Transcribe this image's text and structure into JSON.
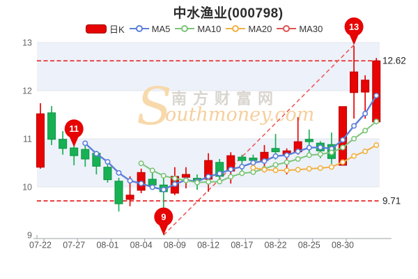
{
  "title": "中水渔业(000798)",
  "legend": {
    "items": [
      {
        "label": "日K",
        "type": "rect",
        "color": "#e60404"
      },
      {
        "label": "MA5",
        "type": "line",
        "color": "#5c7fd8"
      },
      {
        "label": "MA10",
        "type": "line",
        "color": "#7cc477"
      },
      {
        "label": "MA20",
        "type": "line",
        "color": "#f0b143"
      },
      {
        "label": "MA30",
        "type": "line",
        "color": "#e05252"
      }
    ]
  },
  "watermark": {
    "en_initial": "S",
    "cn": "南方财富网",
    "en_rest": "outhmoney.com"
  },
  "chart_data": {
    "type": "candlestick",
    "title": "中水渔业(000798)",
    "y_axis": {
      "ticks": [
        "13",
        "12",
        "11",
        "10",
        "9"
      ],
      "min": 9,
      "max": 13,
      "grid": true
    },
    "x_axis": {
      "labels": [
        "07-22",
        "07-27",
        "08-01",
        "08-04",
        "08-09",
        "08-12",
        "08-17",
        "08-22",
        "08-25",
        "08-30"
      ],
      "label_indices": [
        0,
        3,
        6,
        9,
        12,
        15,
        18,
        21,
        24,
        27
      ]
    },
    "colors": {
      "up": "#e60404",
      "up_stroke": "#bf0000",
      "down": "#17b154",
      "down_stroke": "#0b9342",
      "band": "#edf1f9",
      "grid": "#e3e6ec",
      "axis": "#9aa0a6",
      "ref_line": "#e60000",
      "trend_line": "#ee5a5a",
      "pin": "#e60404"
    },
    "candles": [
      {
        "d": "07-22",
        "o": 10.41,
        "c": 11.52,
        "h": 11.74,
        "l": 10.38
      },
      {
        "d": "07-25",
        "o": 11.54,
        "c": 10.99,
        "h": 11.68,
        "l": 10.87
      },
      {
        "d": "07-26",
        "o": 10.99,
        "c": 10.8,
        "h": 11.16,
        "l": 10.67
      },
      {
        "d": "07-27",
        "o": 10.81,
        "c": 10.65,
        "h": 10.88,
        "l": 10.45
      },
      {
        "d": "07-28",
        "o": 10.78,
        "c": 10.58,
        "h": 10.88,
        "l": 10.42
      },
      {
        "d": "07-29",
        "o": 10.7,
        "c": 10.43,
        "h": 10.75,
        "l": 10.26
      },
      {
        "d": "08-01",
        "o": 10.41,
        "c": 10.15,
        "h": 10.55,
        "l": 10.09
      },
      {
        "d": "08-02",
        "o": 10.12,
        "c": 9.65,
        "h": 10.19,
        "l": 9.49
      },
      {
        "d": "08-03",
        "o": 9.74,
        "c": 9.83,
        "h": 10.22,
        "l": 9.6
      },
      {
        "d": "08-04",
        "o": 9.93,
        "c": 10.3,
        "h": 10.38,
        "l": 9.87
      },
      {
        "d": "08-05",
        "o": 10.16,
        "c": 10.04,
        "h": 10.33,
        "l": 9.97
      },
      {
        "d": "08-08",
        "o": 10.04,
        "c": 9.9,
        "h": 10.28,
        "l": 9.0
      },
      {
        "d": "08-09",
        "o": 9.87,
        "c": 10.22,
        "h": 10.41,
        "l": 9.83
      },
      {
        "d": "08-10",
        "o": 10.2,
        "c": 10.26,
        "h": 10.41,
        "l": 9.97
      },
      {
        "d": "08-11",
        "o": 10.18,
        "c": 10.14,
        "h": 10.26,
        "l": 9.94
      },
      {
        "d": "08-12",
        "o": 10.16,
        "c": 10.55,
        "h": 10.7,
        "l": 9.9
      },
      {
        "d": "08-15",
        "o": 10.51,
        "c": 10.22,
        "h": 10.58,
        "l": 10.16
      },
      {
        "d": "08-16",
        "o": 10.33,
        "c": 10.65,
        "h": 10.72,
        "l": 10.07
      },
      {
        "d": "08-17",
        "o": 10.62,
        "c": 10.55,
        "h": 10.67,
        "l": 10.3
      },
      {
        "d": "08-18",
        "o": 10.6,
        "c": 10.55,
        "h": 10.67,
        "l": 10.3
      },
      {
        "d": "08-19",
        "o": 10.55,
        "c": 10.72,
        "h": 10.87,
        "l": 10.3
      },
      {
        "d": "08-22",
        "o": 10.8,
        "c": 10.73,
        "h": 11.1,
        "l": 10.57
      },
      {
        "d": "08-23",
        "o": 10.68,
        "c": 10.75,
        "h": 10.8,
        "l": 10.26
      },
      {
        "d": "08-24",
        "o": 10.73,
        "c": 10.94,
        "h": 11.45,
        "l": 10.67
      },
      {
        "d": "08-25",
        "o": 10.99,
        "c": 10.94,
        "h": 11.19,
        "l": 10.65
      },
      {
        "d": "08-26",
        "o": 10.91,
        "c": 10.75,
        "h": 10.95,
        "l": 10.6
      },
      {
        "d": "08-29",
        "o": 10.88,
        "c": 10.59,
        "h": 11.13,
        "l": 10.48
      },
      {
        "d": "08-30",
        "o": 10.45,
        "c": 11.67,
        "h": 11.67,
        "l": 10.45
      },
      {
        "d": "08-31",
        "o": 11.96,
        "c": 12.39,
        "h": 12.93,
        "l": 11.42
      },
      {
        "d": "09-01",
        "o": 11.97,
        "c": 12.22,
        "h": 12.32,
        "l": 11.42
      },
      {
        "d": "09-02",
        "o": 11.35,
        "c": 12.62,
        "h": 12.68,
        "l": 11.3
      }
    ],
    "ma_lines": [
      {
        "name": "MA5",
        "period": 5,
        "color": "#5c7fd8",
        "width": 2.4
      },
      {
        "name": "MA10",
        "period": 10,
        "color": "#7cc477",
        "width": 2.0
      },
      {
        "name": "MA20",
        "period": 20,
        "color": "#f0b143",
        "width": 2.0
      }
    ],
    "markers": [
      {
        "label": "11",
        "index": 3,
        "tip_value": 10.83
      },
      {
        "label": "9",
        "index": 11,
        "tip_value": 9.0
      },
      {
        "label": "13",
        "index": 28,
        "tip_value": 12.95
      }
    ],
    "ref_lines": [
      {
        "value": 12.62,
        "label": "12.62"
      },
      {
        "value": 9.71,
        "label": "9.71"
      }
    ],
    "trend_line": {
      "from_marker": 1,
      "to_marker": 2
    }
  }
}
